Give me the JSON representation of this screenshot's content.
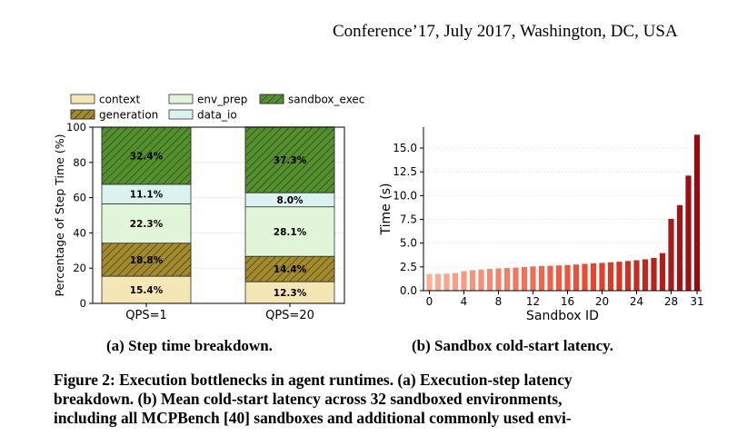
{
  "header": {
    "venue": "Conference’17, July 2017, Washington, DC, USA"
  },
  "chart_data": [
    {
      "type": "bar",
      "stacked": true,
      "ylabel": "Percentage of Step Time (%)",
      "xlabel": "",
      "ylim": [
        0,
        100
      ],
      "yticks": [
        "0",
        "20",
        "40",
        "60",
        "80",
        "100"
      ],
      "categories": [
        "QPS=1",
        "QPS=20"
      ],
      "series": [
        {
          "name": "context",
          "values": [
            15.4,
            12.3
          ],
          "labels": [
            "15.4%",
            "12.3%"
          ],
          "color": "#f5e6b5",
          "hatch": false
        },
        {
          "name": "generation",
          "values": [
            18.8,
            14.4
          ],
          "labels": [
            "18.8%",
            "14.4%"
          ],
          "color": "#a38a2c",
          "hatch": true
        },
        {
          "name": "env_prep",
          "values": [
            22.3,
            28.1
          ],
          "labels": [
            "22.3%",
            "28.1%"
          ],
          "color": "#e3f5d8",
          "hatch": false
        },
        {
          "name": "data_io",
          "values": [
            11.1,
            8.0
          ],
          "labels": [
            "11.1%",
            "8.0%"
          ],
          "color": "#daf3f1",
          "hatch": false
        },
        {
          "name": "sandbox_exec",
          "values": [
            32.4,
            37.3
          ],
          "labels": [
            "32.4%",
            "37.3%"
          ],
          "color": "#53912f",
          "hatch": true
        }
      ],
      "legend": "top"
    },
    {
      "type": "bar",
      "xlabel": "Sandbox ID",
      "ylabel": "Time (s)",
      "ylim": [
        0,
        17.2
      ],
      "yticks": [
        "0.0",
        "2.5",
        "5.0",
        "7.5",
        "10.0",
        "12.5",
        "15.0"
      ],
      "xticks": [
        "0",
        "4",
        "8",
        "12",
        "16",
        "20",
        "24",
        "28",
        "31"
      ],
      "categories": [
        0,
        1,
        2,
        3,
        4,
        5,
        6,
        7,
        8,
        9,
        10,
        11,
        12,
        13,
        14,
        15,
        16,
        17,
        18,
        19,
        20,
        21,
        22,
        23,
        24,
        25,
        26,
        27,
        28,
        29,
        30,
        31
      ],
      "values": [
        1.75,
        1.77,
        1.79,
        1.85,
        2.05,
        2.15,
        2.22,
        2.3,
        2.35,
        2.38,
        2.42,
        2.48,
        2.55,
        2.6,
        2.62,
        2.65,
        2.7,
        2.75,
        2.82,
        2.88,
        2.92,
        2.98,
        3.05,
        3.12,
        3.2,
        3.3,
        3.45,
        3.95,
        7.55,
        9.0,
        12.1,
        16.4
      ],
      "grid": true
    }
  ],
  "captions": {
    "a": "(a) Step time breakdown.",
    "b": "(b) Sandbox cold-start latency.",
    "figure_lines": [
      "Figure 2: Execution bottlenecks in agent runtimes. (a) Execution-step latency",
      "breakdown. (b) Mean cold-start latency across 32 sandboxed environments,",
      "including all MCPBench [40] sandboxes and additional commonly used envi-"
    ]
  }
}
